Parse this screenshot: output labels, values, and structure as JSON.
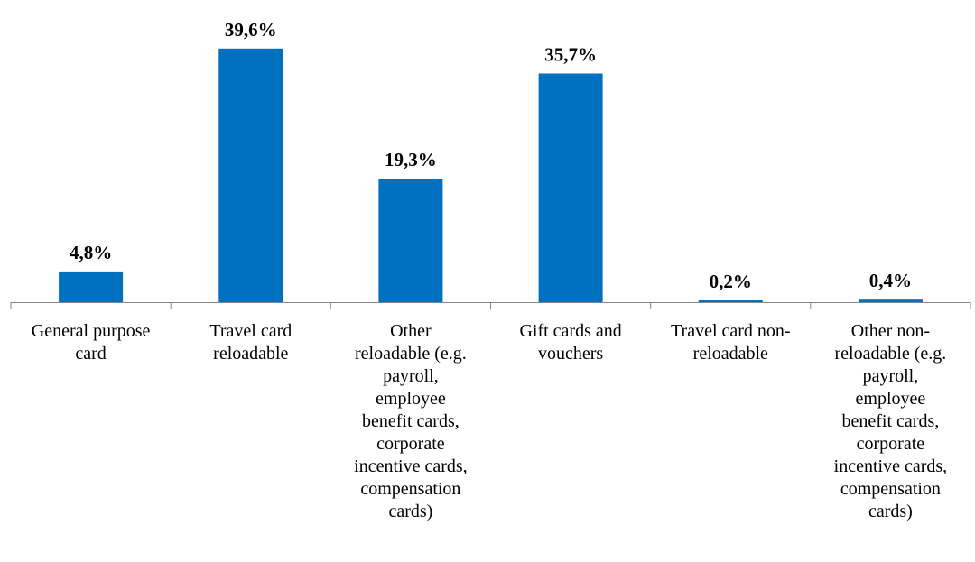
{
  "colors": {
    "bar": "#0070C0",
    "axis": "#868686",
    "text": "#000000"
  },
  "chart_data": {
    "type": "bar",
    "title": "",
    "xlabel": "",
    "ylabel": "",
    "ylim": [
      0,
      40
    ],
    "grid": false,
    "categories": [
      "General purpose card",
      "Travel card reloadable",
      "Other reloadable (e.g. payroll, employee benefit cards, corporate incentive cards, compensation cards)",
      "Gift cards and vouchers",
      "Travel card non-reloadable",
      "Other non-reloadable (e.g. payroll, employee benefit cards, corporate incentive cards, compensation cards)"
    ],
    "category_lines": [
      [
        "General purpose",
        "card"
      ],
      [
        "Travel card",
        "reloadable"
      ],
      [
        "Other",
        "reloadable (e.g.",
        "payroll,",
        "employee",
        "benefit cards,",
        "corporate",
        "incentive cards,",
        "compensation",
        "cards)"
      ],
      [
        "Gift cards and",
        "vouchers"
      ],
      [
        "Travel card non-",
        "reloadable"
      ],
      [
        "Other non-",
        "reloadable  (e.g.",
        "payroll,",
        "employee",
        "benefit cards,",
        "corporate",
        "incentive cards,",
        "compensation",
        "cards)"
      ]
    ],
    "values": [
      4.8,
      39.6,
      19.3,
      35.7,
      0.2,
      0.4
    ],
    "data_labels": [
      "4,8%",
      "39,6%",
      "19,3%",
      "35,7%",
      "0,2%",
      "0,4%"
    ]
  }
}
